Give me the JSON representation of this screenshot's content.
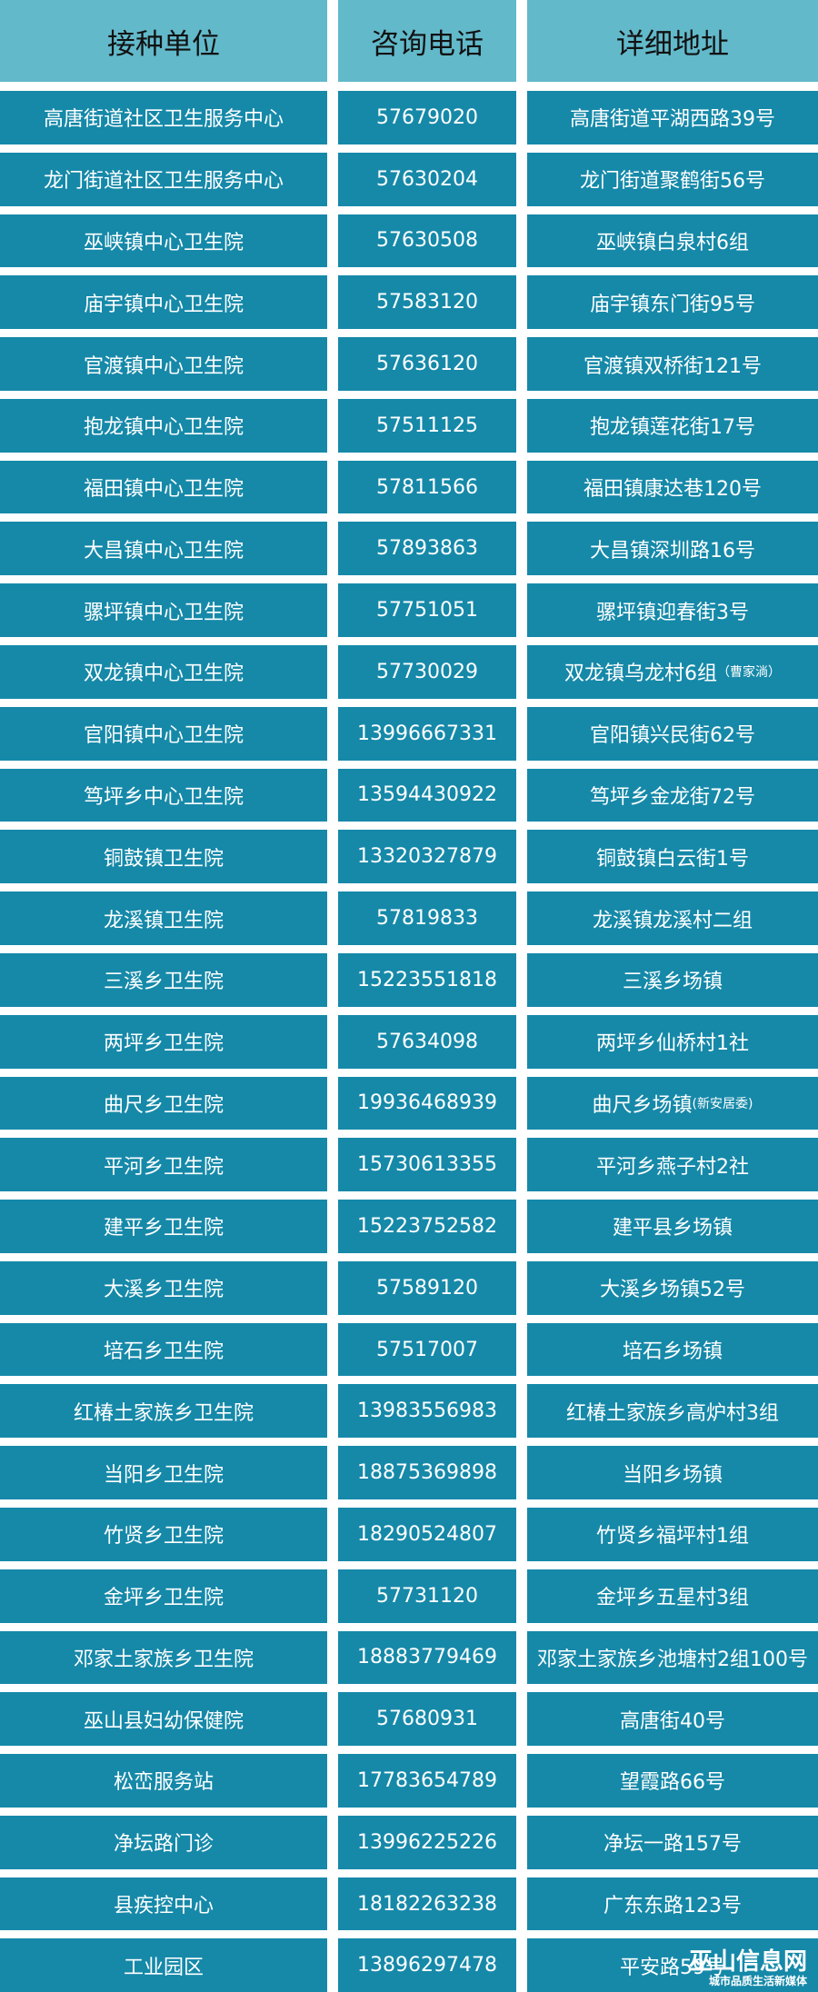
{
  "header": [
    "接种单位",
    "咨询电话",
    "详细地址"
  ],
  "rows": [
    {
      "unit": "高唐街道社区卫生服务中心",
      "phone": "57679020",
      "addr": "高唐街道平湖西路39号",
      "note": ""
    },
    {
      "unit": "龙门街道社区卫生服务中心",
      "phone": "57630204",
      "addr": "龙门街道聚鹤街56号",
      "note": ""
    },
    {
      "unit": "巫峡镇中心卫生院",
      "phone": "57630508",
      "addr": "巫峡镇白泉村6组",
      "note": ""
    },
    {
      "unit": "庙宇镇中心卫生院",
      "phone": "57583120",
      "addr": "庙宇镇东门街95号",
      "note": ""
    },
    {
      "unit": "官渡镇中心卫生院",
      "phone": "57636120",
      "addr": "官渡镇双桥街121号",
      "note": ""
    },
    {
      "unit": "抱龙镇中心卫生院",
      "phone": "57511125",
      "addr": "抱龙镇莲花街17号",
      "note": ""
    },
    {
      "unit": "福田镇中心卫生院",
      "phone": "57811566",
      "addr": "福田镇康达巷120号",
      "note": ""
    },
    {
      "unit": "大昌镇中心卫生院",
      "phone": "57893863",
      "addr": "大昌镇深圳路16号",
      "note": ""
    },
    {
      "unit": "骡坪镇中心卫生院",
      "phone": "57751051",
      "addr": "骡坪镇迎春街3号",
      "note": ""
    },
    {
      "unit": "双龙镇中心卫生院",
      "phone": "57730029",
      "addr": "双龙镇乌龙村6组",
      "note": "（曹家淌）"
    },
    {
      "unit": "官阳镇中心卫生院",
      "phone": "13996667331",
      "addr": "官阳镇兴民街62号",
      "note": ""
    },
    {
      "unit": "笃坪乡中心卫生院",
      "phone": "13594430922",
      "addr": "笃坪乡金龙街72号",
      "note": ""
    },
    {
      "unit": "铜鼓镇卫生院",
      "phone": "13320327879",
      "addr": "铜鼓镇白云街1号",
      "note": ""
    },
    {
      "unit": "龙溪镇卫生院",
      "phone": "57819833",
      "addr": "龙溪镇龙溪村二组",
      "note": ""
    },
    {
      "unit": "三溪乡卫生院",
      "phone": "15223551818",
      "addr": "三溪乡场镇",
      "note": ""
    },
    {
      "unit": "两坪乡卫生院",
      "phone": "57634098",
      "addr": "两坪乡仙桥村1社",
      "note": ""
    },
    {
      "unit": "曲尺乡卫生院",
      "phone": "19936468939",
      "addr": "曲尺乡场镇",
      "note": "(新安居委)"
    },
    {
      "unit": "平河乡卫生院",
      "phone": "15730613355",
      "addr": "平河乡燕子村2社",
      "note": ""
    },
    {
      "unit": "建平乡卫生院",
      "phone": "15223752582",
      "addr": "建平县乡场镇",
      "note": ""
    },
    {
      "unit": "大溪乡卫生院",
      "phone": "57589120",
      "addr": "大溪乡场镇52号",
      "note": ""
    },
    {
      "unit": "培石乡卫生院",
      "phone": "57517007",
      "addr": "培石乡场镇",
      "note": ""
    },
    {
      "unit": "红椿土家族乡卫生院",
      "phone": "13983556983",
      "addr": "红椿土家族乡高炉村3组",
      "note": ""
    },
    {
      "unit": "当阳乡卫生院",
      "phone": "18875369898",
      "addr": "当阳乡场镇",
      "note": ""
    },
    {
      "unit": "竹贤乡卫生院",
      "phone": "18290524807",
      "addr": "竹贤乡福坪村1组",
      "note": ""
    },
    {
      "unit": "金坪乡卫生院",
      "phone": "57731120",
      "addr": "金坪乡五星村3组",
      "note": ""
    },
    {
      "unit": "邓家土家族乡卫生院",
      "phone": "18883779469",
      "addr": "邓家土家族乡池塘村2组100号",
      "note": ""
    },
    {
      "unit": "巫山县妇幼保健院",
      "phone": "57680931",
      "addr": "高唐街40号",
      "note": ""
    },
    {
      "unit": "松峦服务站",
      "phone": "17783654789",
      "addr": "望霞路66号",
      "note": ""
    },
    {
      "unit": "净坛路门诊",
      "phone": "13996225226",
      "addr": "净坛一路157号",
      "note": ""
    },
    {
      "unit": "县疾控中心",
      "phone": "18182263238",
      "addr": "广东东路123号",
      "note": ""
    },
    {
      "unit": "工业园区",
      "phone": "13896297478",
      "addr": "平安路59号",
      "note": ""
    }
  ],
  "watermark": {
    "name": "巫山信息网",
    "slogan": "城市品质生活新媒体"
  },
  "colors": {
    "header_bg": "#62b9ca",
    "row_bg": "#1689a9"
  }
}
